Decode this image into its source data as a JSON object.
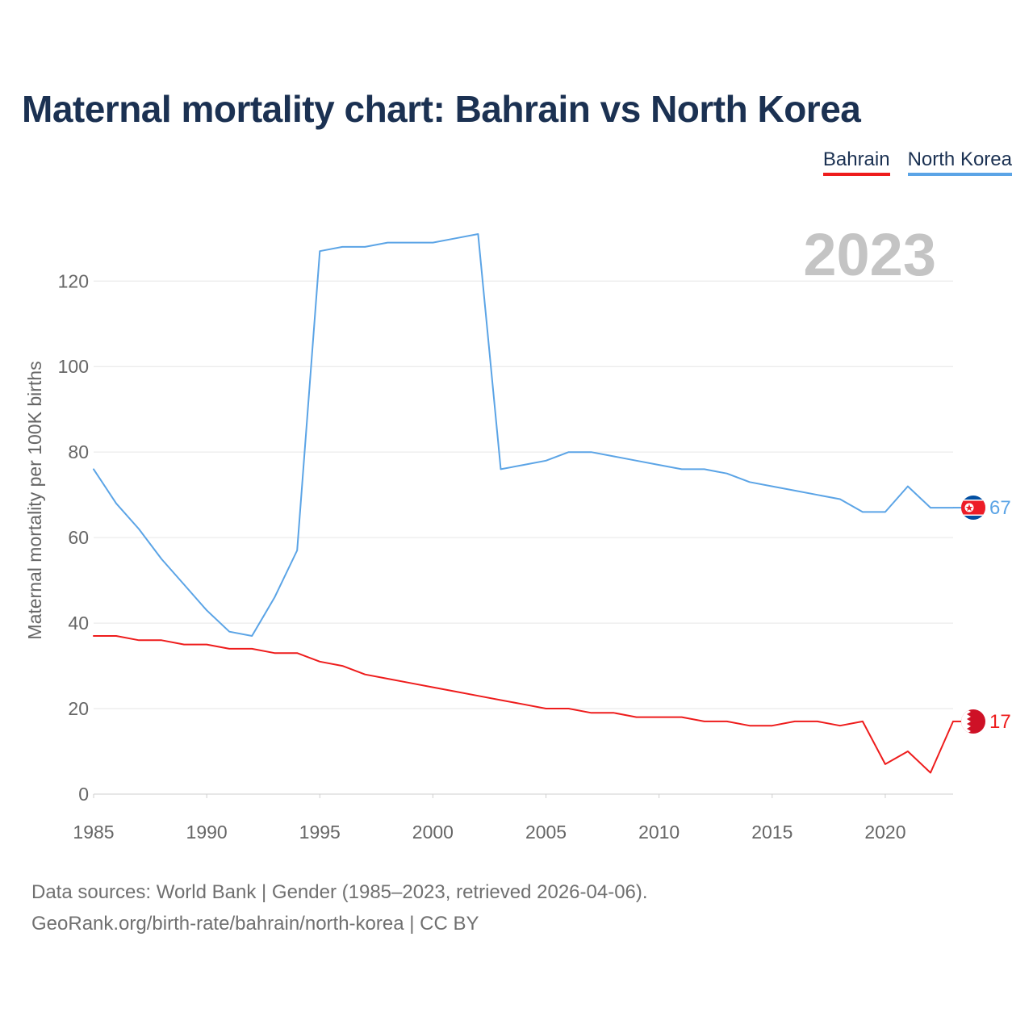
{
  "title": "Maternal mortality chart: Bahrain vs North Korea",
  "legend": {
    "bahrain": "Bahrain",
    "north_korea": "North Korea"
  },
  "year_watermark": "2023",
  "footer": {
    "line1": "Data sources: World Bank | Gender (1985–2023, retrieved 2026-04-06).",
    "line2": "GeoRank.org/birth-rate/bahrain/north-korea | CC BY"
  },
  "colors": {
    "bahrain": "#ee1c1c",
    "north_korea": "#5ba4e6",
    "title": "#1b3152"
  },
  "chart_data": {
    "type": "line",
    "title": "Maternal mortality chart: Bahrain vs North Korea",
    "xlabel": "",
    "ylabel": "Maternal mortality per 100K births",
    "xlim": [
      1985,
      2023
    ],
    "ylim": [
      0,
      130
    ],
    "x_ticks": [
      1985,
      1990,
      1995,
      2000,
      2005,
      2010,
      2015,
      2020
    ],
    "y_ticks": [
      0,
      20,
      40,
      60,
      80,
      100,
      120
    ],
    "grid": true,
    "legend_position": "top-right",
    "x": [
      1985,
      1986,
      1987,
      1988,
      1989,
      1990,
      1991,
      1992,
      1993,
      1994,
      1995,
      1996,
      1997,
      1998,
      1999,
      2000,
      2001,
      2002,
      2003,
      2004,
      2005,
      2006,
      2007,
      2008,
      2009,
      2010,
      2011,
      2012,
      2013,
      2014,
      2015,
      2016,
      2017,
      2018,
      2019,
      2020,
      2021,
      2022,
      2023
    ],
    "series": [
      {
        "name": "Bahrain",
        "color": "#ee1c1c",
        "end_label": "17",
        "flag": "bahrain-flag-icon",
        "values": [
          37,
          37,
          36,
          36,
          35,
          35,
          34,
          34,
          33,
          33,
          31,
          30,
          28,
          27,
          26,
          25,
          24,
          23,
          22,
          21,
          20,
          20,
          19,
          19,
          18,
          18,
          18,
          17,
          17,
          16,
          16,
          17,
          17,
          16,
          17,
          7,
          10,
          5,
          17
        ]
      },
      {
        "name": "North Korea",
        "color": "#5ba4e6",
        "end_label": "67",
        "flag": "north-korea-flag-icon",
        "values": [
          76,
          68,
          62,
          55,
          49,
          43,
          38,
          37,
          46,
          57,
          127,
          128,
          128,
          129,
          129,
          129,
          130,
          131,
          76,
          77,
          78,
          80,
          80,
          79,
          78,
          77,
          76,
          76,
          75,
          73,
          72,
          71,
          70,
          69,
          66,
          66,
          72,
          67,
          67
        ]
      }
    ]
  }
}
